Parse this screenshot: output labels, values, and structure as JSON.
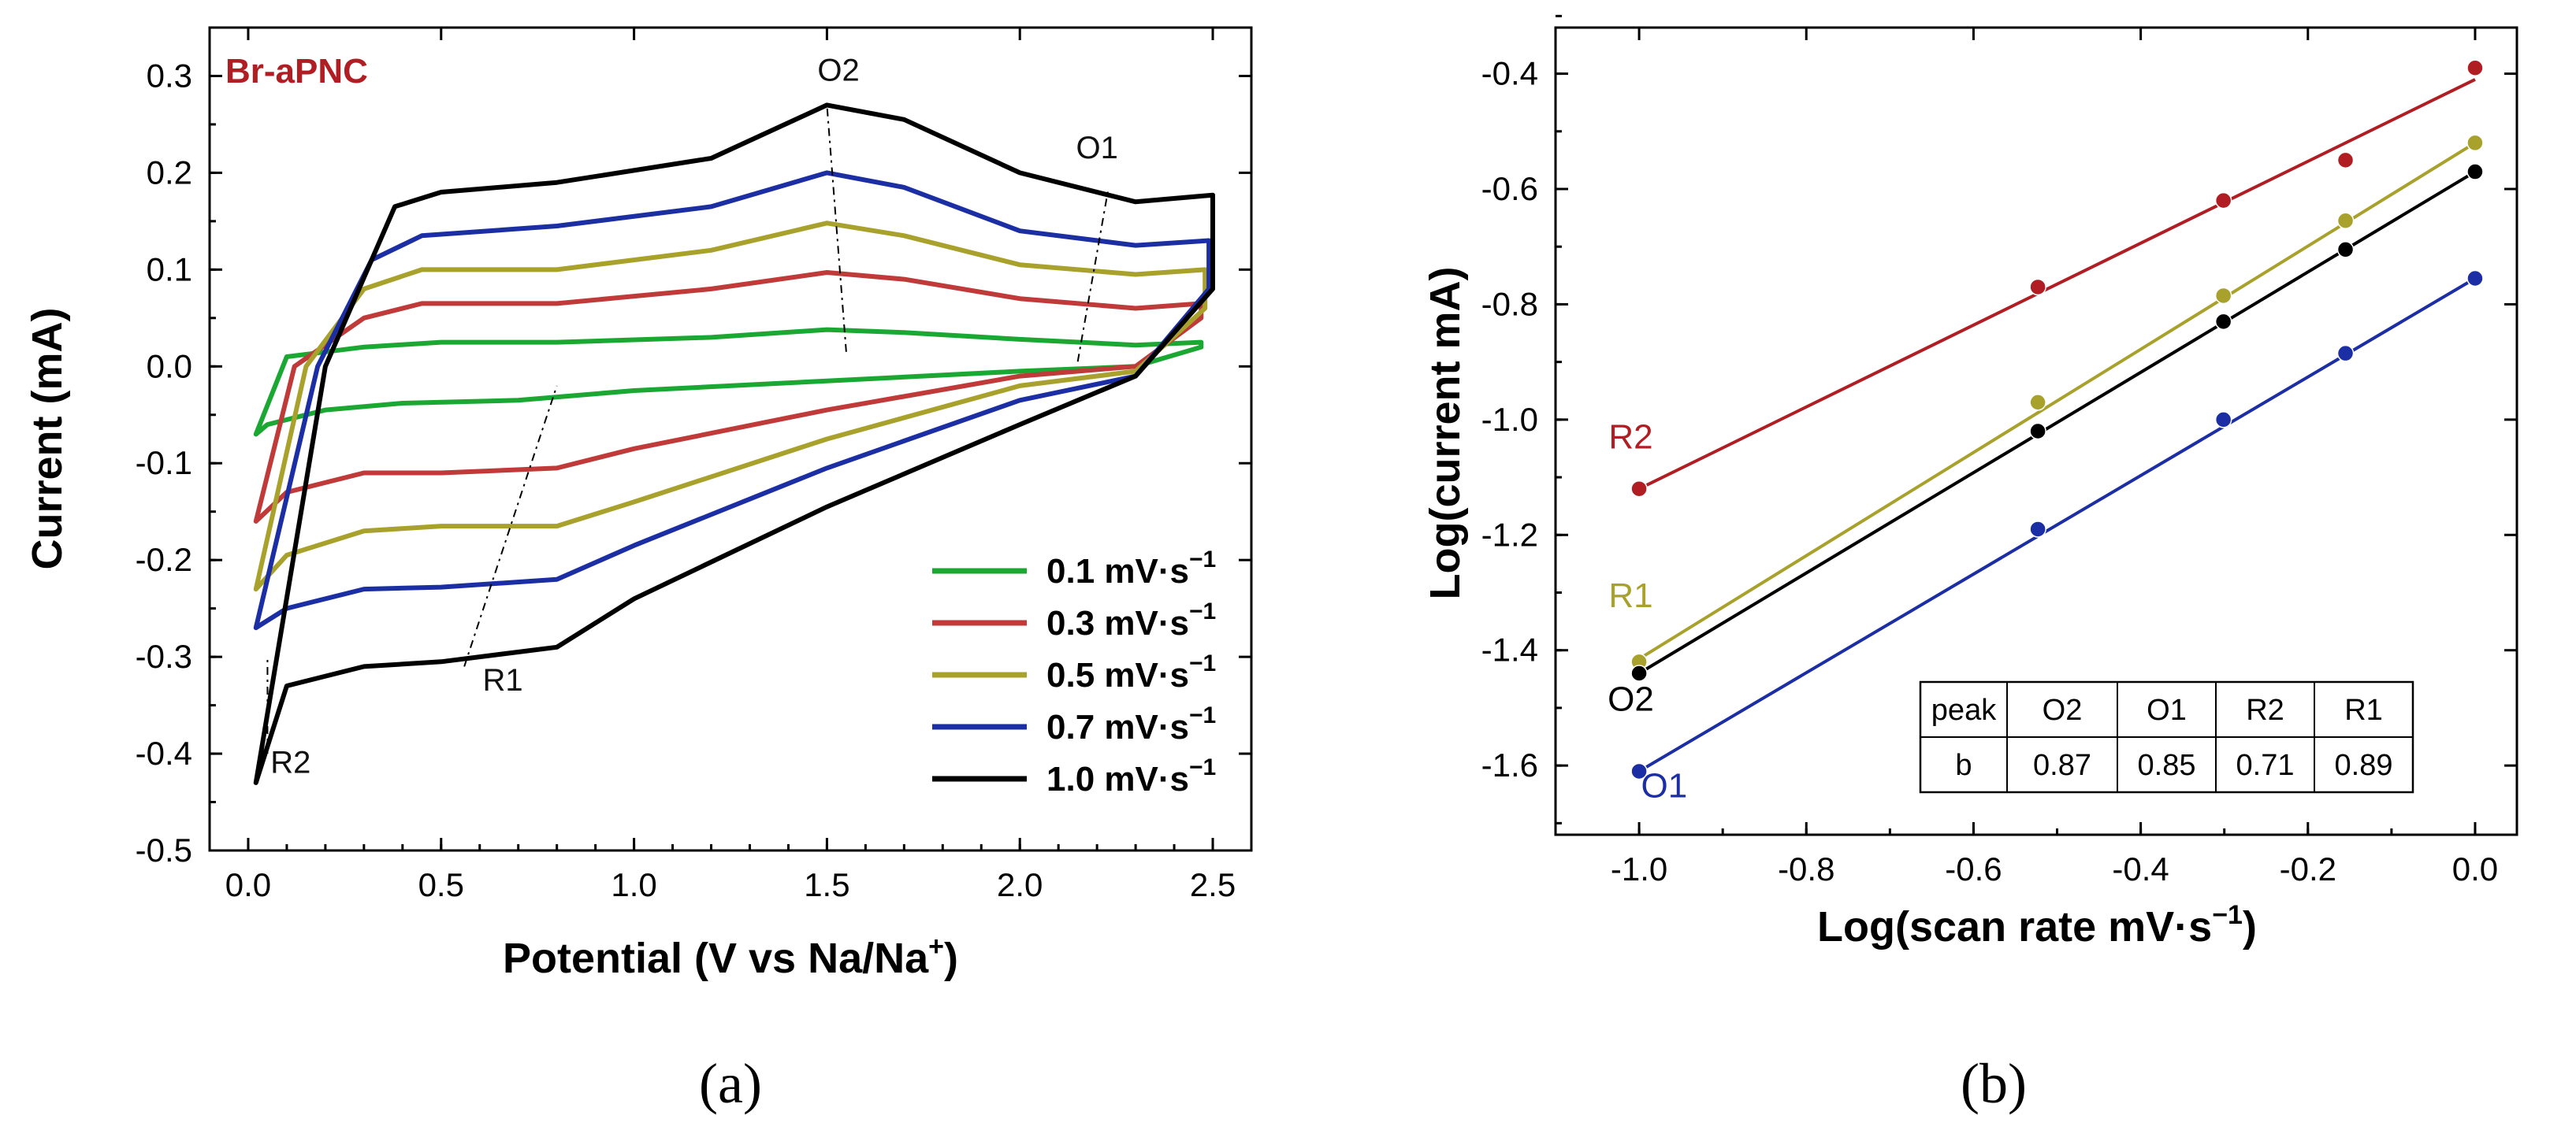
{
  "chart_data": [
    {
      "type": "line",
      "panel_label": "(a)",
      "title": "Br-aPNC",
      "xlabel": "Potential (V vs Na/Na",
      "xlabel_sup": "+",
      "xlabel_end": ")",
      "ylabel": "Current (mA)",
      "xlim": [
        -0.1,
        2.6
      ],
      "ylim": [
        -0.5,
        0.35
      ],
      "xticks": [
        0.0,
        0.5,
        1.0,
        1.5,
        2.0,
        2.5
      ],
      "xtick_labels": [
        "0.0",
        "0.5",
        "1.0",
        "1.5",
        "2.0",
        "2.5"
      ],
      "yticks": [
        -0.5,
        -0.4,
        -0.3,
        -0.2,
        -0.1,
        0.0,
        0.1,
        0.2,
        0.3
      ],
      "ytick_labels": [
        "-0.5",
        "-0.4",
        "-0.3",
        "-0.2",
        "-0.1",
        "0.0",
        "0.1",
        "0.2",
        "0.3"
      ],
      "legend_position": "bottom-right",
      "series": [
        {
          "name": "0.1 mV·s",
          "sup": "−1",
          "color": "#1aa832",
          "anodic": [
            [
              0.02,
              -0.07
            ],
            [
              0.1,
              0.01
            ],
            [
              0.3,
              0.02
            ],
            [
              0.5,
              0.025
            ],
            [
              0.8,
              0.025
            ],
            [
              1.2,
              0.03
            ],
            [
              1.5,
              0.038
            ],
            [
              1.7,
              0.035
            ],
            [
              2.0,
              0.028
            ],
            [
              2.3,
              0.022
            ],
            [
              2.47,
              0.025
            ]
          ],
          "cathodic": [
            [
              2.47,
              0.02
            ],
            [
              2.3,
              0.0
            ],
            [
              2.0,
              -0.005
            ],
            [
              1.5,
              -0.015
            ],
            [
              1.0,
              -0.025
            ],
            [
              0.7,
              -0.035
            ],
            [
              0.4,
              -0.038
            ],
            [
              0.2,
              -0.045
            ],
            [
              0.05,
              -0.06
            ],
            [
              0.02,
              -0.07
            ]
          ]
        },
        {
          "name": "0.3 mV·s",
          "sup": "−1",
          "color": "#c03a3a",
          "anodic": [
            [
              0.02,
              -0.16
            ],
            [
              0.12,
              0.0
            ],
            [
              0.3,
              0.05
            ],
            [
              0.45,
              0.065
            ],
            [
              0.8,
              0.065
            ],
            [
              1.2,
              0.08
            ],
            [
              1.5,
              0.097
            ],
            [
              1.7,
              0.09
            ],
            [
              2.0,
              0.07
            ],
            [
              2.3,
              0.06
            ],
            [
              2.47,
              0.065
            ]
          ],
          "cathodic": [
            [
              2.47,
              0.05
            ],
            [
              2.3,
              0.0
            ],
            [
              2.0,
              -0.01
            ],
            [
              1.5,
              -0.045
            ],
            [
              1.0,
              -0.085
            ],
            [
              0.8,
              -0.105
            ],
            [
              0.5,
              -0.11
            ],
            [
              0.3,
              -0.11
            ],
            [
              0.1,
              -0.13
            ],
            [
              0.02,
              -0.16
            ]
          ]
        },
        {
          "name": "0.5 mV·s",
          "sup": "−1",
          "color": "#a8a22c",
          "anodic": [
            [
              0.02,
              -0.23
            ],
            [
              0.15,
              0.0
            ],
            [
              0.3,
              0.08
            ],
            [
              0.45,
              0.1
            ],
            [
              0.8,
              0.1
            ],
            [
              1.2,
              0.12
            ],
            [
              1.5,
              0.148
            ],
            [
              1.7,
              0.135
            ],
            [
              2.0,
              0.105
            ],
            [
              2.3,
              0.095
            ],
            [
              2.48,
              0.1
            ]
          ],
          "cathodic": [
            [
              2.48,
              0.06
            ],
            [
              2.3,
              -0.005
            ],
            [
              2.0,
              -0.02
            ],
            [
              1.5,
              -0.075
            ],
            [
              1.0,
              -0.14
            ],
            [
              0.8,
              -0.165
            ],
            [
              0.5,
              -0.165
            ],
            [
              0.3,
              -0.17
            ],
            [
              0.1,
              -0.195
            ],
            [
              0.02,
              -0.23
            ]
          ]
        },
        {
          "name": "0.7 mV·s",
          "sup": "−1",
          "color": "#1c2ea3",
          "anodic": [
            [
              0.02,
              -0.27
            ],
            [
              0.18,
              0.0
            ],
            [
              0.32,
              0.11
            ],
            [
              0.45,
              0.135
            ],
            [
              0.8,
              0.145
            ],
            [
              1.2,
              0.165
            ],
            [
              1.5,
              0.2
            ],
            [
              1.7,
              0.185
            ],
            [
              2.0,
              0.14
            ],
            [
              2.3,
              0.125
            ],
            [
              2.49,
              0.13
            ]
          ],
          "cathodic": [
            [
              2.49,
              0.08
            ],
            [
              2.3,
              -0.01
            ],
            [
              2.0,
              -0.035
            ],
            [
              1.5,
              -0.105
            ],
            [
              1.0,
              -0.185
            ],
            [
              0.8,
              -0.22
            ],
            [
              0.5,
              -0.228
            ],
            [
              0.3,
              -0.23
            ],
            [
              0.1,
              -0.25
            ],
            [
              0.02,
              -0.27
            ]
          ]
        },
        {
          "name": "1.0 mV·s",
          "sup": "−1",
          "color": "#000000",
          "anodic": [
            [
              0.02,
              -0.43
            ],
            [
              0.2,
              0.0
            ],
            [
              0.38,
              0.165
            ],
            [
              0.5,
              0.18
            ],
            [
              0.8,
              0.19
            ],
            [
              1.2,
              0.215
            ],
            [
              1.5,
              0.27
            ],
            [
              1.7,
              0.255
            ],
            [
              2.0,
              0.2
            ],
            [
              2.3,
              0.17
            ],
            [
              2.5,
              0.177
            ]
          ],
          "cathodic": [
            [
              2.5,
              0.08
            ],
            [
              2.3,
              -0.01
            ],
            [
              2.0,
              -0.06
            ],
            [
              1.5,
              -0.145
            ],
            [
              1.0,
              -0.24
            ],
            [
              0.8,
              -0.29
            ],
            [
              0.5,
              -0.305
            ],
            [
              0.3,
              -0.31
            ],
            [
              0.1,
              -0.33
            ],
            [
              0.02,
              -0.43
            ]
          ]
        }
      ],
      "annotations": [
        {
          "text": "O2",
          "x": 1.53,
          "y": 0.295
        },
        {
          "text": "O1",
          "x": 2.2,
          "y": 0.215
        },
        {
          "text": "R1",
          "x": 0.66,
          "y": -0.335
        },
        {
          "text": "R2",
          "x": 0.11,
          "y": -0.42
        }
      ],
      "guide_lines": [
        [
          [
            1.55,
            0.015
          ],
          [
            1.5,
            0.27
          ]
        ],
        [
          [
            2.15,
            0.005
          ],
          [
            2.23,
            0.185
          ]
        ],
        [
          [
            0.56,
            -0.31
          ],
          [
            0.8,
            -0.02
          ]
        ],
        [
          [
            0.05,
            -0.4
          ],
          [
            0.05,
            -0.3
          ]
        ]
      ]
    },
    {
      "type": "scatter",
      "panel_label": "(b)",
      "xlabel": "Log(scan rate mV·s",
      "xlabel_sup": "−1",
      "xlabel_end": ")",
      "ylabel": "Log(current mA)",
      "xlim": [
        -1.1,
        0.05
      ],
      "ylim": [
        -1.72,
        -0.32
      ],
      "xticks": [
        -1.0,
        -0.8,
        -0.6,
        -0.4,
        -0.2,
        0.0
      ],
      "xtick_labels": [
        "-1.0",
        "-0.8",
        "-0.6",
        "-0.4",
        "-0.2",
        "0.0"
      ],
      "yticks": [
        -1.6,
        -1.4,
        -1.2,
        -1.0,
        -0.8,
        -0.6,
        -0.4
      ],
      "ytick_labels": [
        "-1.6",
        "-1.4",
        "-1.2",
        "-1.0",
        "-0.8",
        "-0.6",
        "-0.4"
      ],
      "x": [
        -1.0,
        -0.523,
        -0.301,
        -0.155,
        0.0
      ],
      "series": [
        {
          "name": "R2",
          "color": "#b01e23",
          "values": [
            -1.12,
            -0.77,
            -0.62,
            -0.55,
            -0.39
          ],
          "fit": [
            -1.12,
            -0.41
          ]
        },
        {
          "name": "R1",
          "color": "#a8a22c",
          "values": [
            -1.42,
            -0.97,
            -0.785,
            -0.655,
            -0.52
          ],
          "fit": [
            -1.415,
            -0.52
          ]
        },
        {
          "name": "O2",
          "color": "#000000",
          "values": [
            -1.44,
            -1.02,
            -0.83,
            -0.705,
            -0.57
          ],
          "fit": [
            -1.44,
            -0.57
          ]
        },
        {
          "name": "O1",
          "color": "#1c2ea3",
          "values": [
            -1.61,
            -1.19,
            -1.0,
            -0.885,
            -0.755
          ],
          "fit": [
            -1.61,
            -0.755
          ]
        }
      ],
      "series_label_positions": {
        "R2": [
          -1.01,
          -1.05
        ],
        "R1": [
          -1.01,
          -1.325
        ],
        "O2": [
          -1.01,
          -1.505
        ],
        "O1": [
          -0.97,
          -1.655
        ]
      },
      "table": {
        "header": [
          "peak",
          "O2",
          "O1",
          "R2",
          "R1"
        ],
        "row": [
          "b",
          "0.87",
          "0.85",
          "0.71",
          "0.89"
        ]
      }
    }
  ]
}
